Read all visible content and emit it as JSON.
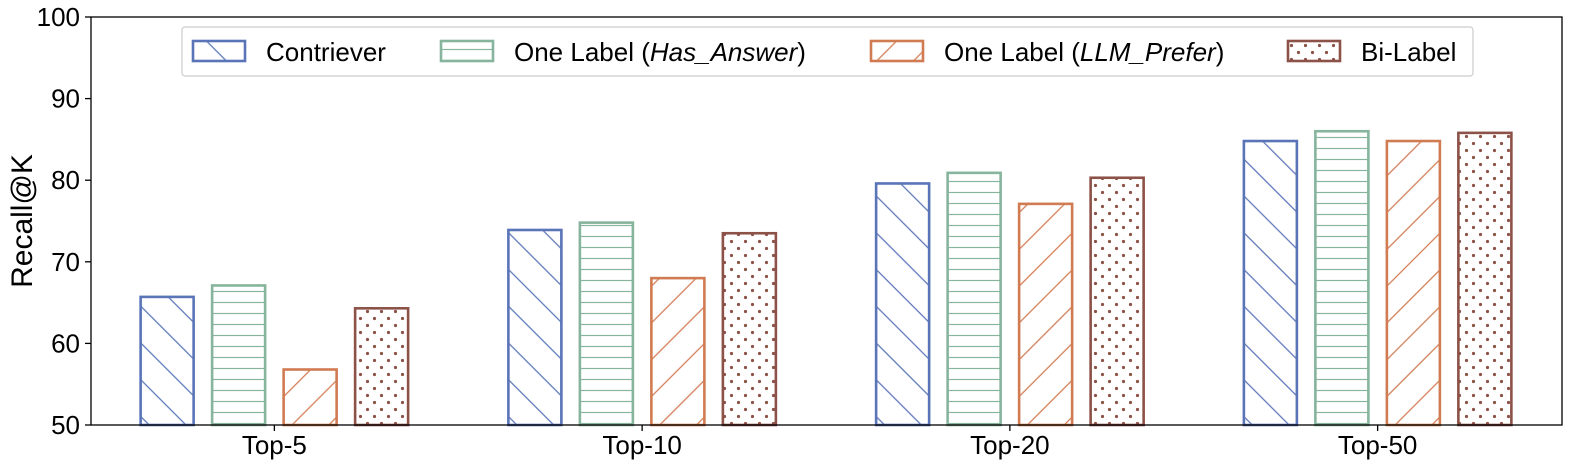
{
  "chart_data": {
    "type": "bar",
    "title": "",
    "xlabel": "",
    "ylabel": "Recall@K",
    "ylim": [
      50,
      100
    ],
    "yticks": [
      "50",
      "60",
      "70",
      "80",
      "90",
      "100"
    ],
    "categories": [
      "Top-5",
      "Top-10",
      "Top-20",
      "Top-50"
    ],
    "legend_position": "top-center",
    "series": [
      {
        "name": "Contriever",
        "name_prefix": "Contriever",
        "name_italic": "",
        "name_suffix": "",
        "color": "#5a74b8",
        "hatch": "diagonal-forward",
        "values": [
          65.7,
          73.9,
          79.6,
          84.8
        ]
      },
      {
        "name": "One Label (Has_Answer)",
        "name_prefix": "One Label (",
        "name_italic": "Has_Answer",
        "name_suffix": ")",
        "color": "#86b49c",
        "hatch": "horizontal",
        "values": [
          67.1,
          74.8,
          80.9,
          86.0
        ]
      },
      {
        "name": "One Label (LLM_Prefer)",
        "name_prefix": "One Label (",
        "name_italic": "LLM_Prefer",
        "name_suffix": ")",
        "color": "#d17b52",
        "hatch": "diagonal-back",
        "values": [
          56.8,
          68.0,
          77.1,
          84.8
        ]
      },
      {
        "name": "Bi-Label",
        "name_prefix": "Bi-Label",
        "name_italic": "",
        "name_suffix": "",
        "color": "#8c5248",
        "hatch": "dots",
        "values": [
          64.3,
          73.5,
          80.3,
          85.8
        ]
      }
    ]
  }
}
